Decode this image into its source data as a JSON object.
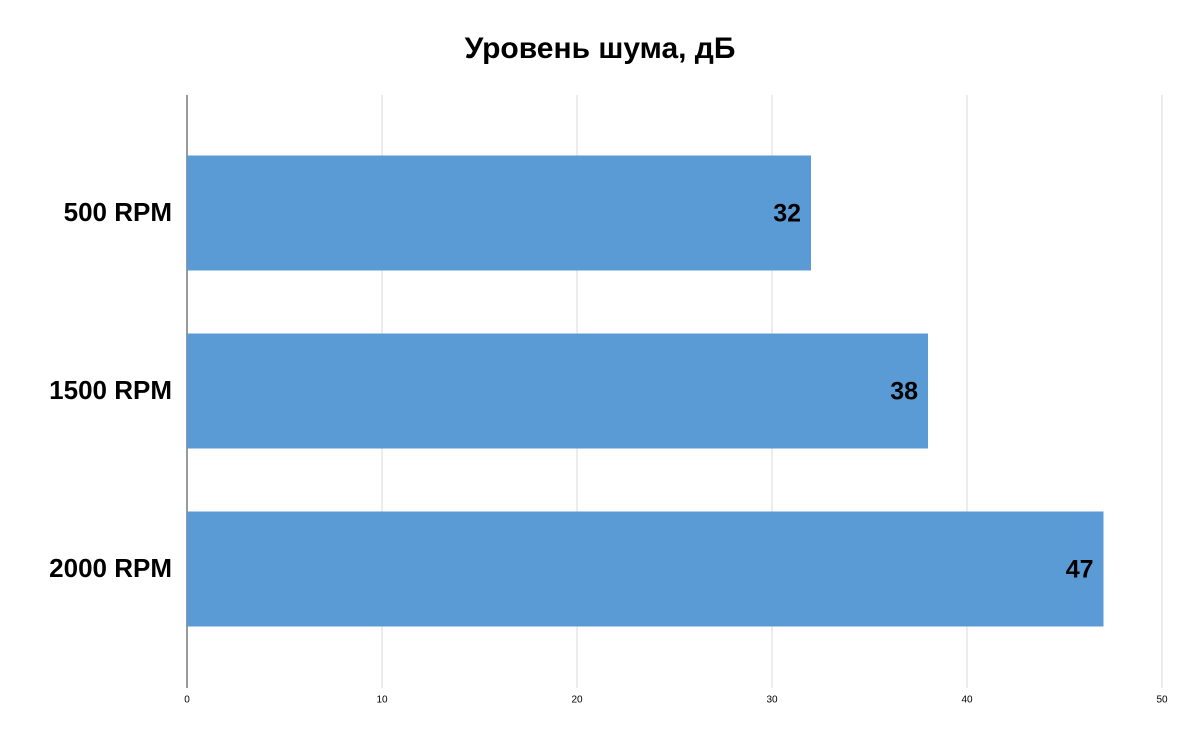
{
  "chart_data": {
    "type": "bar",
    "orientation": "horizontal",
    "title": "Уровень шума, дБ",
    "categories": [
      "500 RPM",
      "1500 RPM",
      "2000 RPM"
    ],
    "values": [
      32,
      38,
      47
    ],
    "color": "#5b9bd5",
    "xlim": [
      0,
      50
    ],
    "xticks": [
      0,
      10,
      20,
      30,
      40,
      50
    ],
    "grid": true
  }
}
